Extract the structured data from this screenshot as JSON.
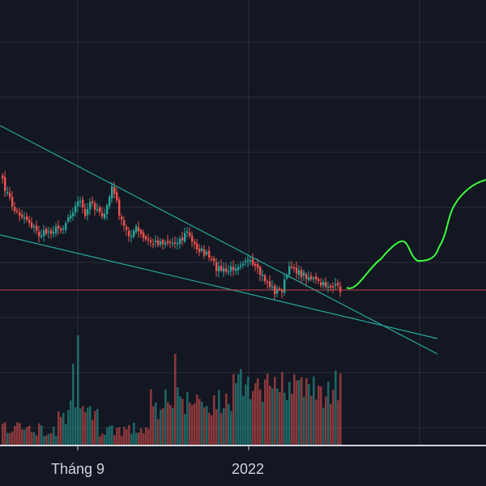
{
  "theme": {
    "background": "#131722",
    "grid": "#2a2e39",
    "up": "#26a69a",
    "down": "#ef5350",
    "volume_up": "#26a69a",
    "volume_down": "#ef5350",
    "trendline": "#26a69a",
    "projection": "#3bff3b",
    "price_line": "#ef5350",
    "axis_line": "#d1d4dc"
  },
  "x_axis": {
    "labels": [
      "Tháng 9",
      "2022"
    ]
  },
  "chart_data": {
    "type": "candlestick",
    "title": "",
    "xlabel": "",
    "ylabel": "",
    "grid": true,
    "legend": "none",
    "ylim": [
      0,
      600
    ],
    "x_labels": [
      "Tháng 9",
      "2022"
    ],
    "bar_count": 140,
    "close_anchors": [
      [
        0,
        225
      ],
      [
        5,
        260
      ],
      [
        10,
        270
      ],
      [
        15,
        290
      ],
      [
        20,
        285
      ],
      [
        25,
        280
      ],
      [
        28,
        262
      ],
      [
        30,
        255
      ],
      [
        32,
        245
      ],
      [
        34,
        270
      ],
      [
        36,
        250
      ],
      [
        40,
        260
      ],
      [
        42,
        268
      ],
      [
        45,
        230
      ],
      [
        47,
        250
      ],
      [
        49,
        275
      ],
      [
        52,
        290
      ],
      [
        55,
        282
      ],
      [
        58,
        295
      ],
      [
        62,
        300
      ],
      [
        66,
        298
      ],
      [
        70,
        300
      ],
      [
        72,
        296
      ],
      [
        74,
        295
      ],
      [
        76,
        285
      ],
      [
        78,
        300
      ],
      [
        80,
        305
      ],
      [
        84,
        315
      ],
      [
        88,
        330
      ],
      [
        92,
        336
      ],
      [
        96,
        328
      ],
      [
        100,
        320
      ],
      [
        104,
        332
      ],
      [
        108,
        345
      ],
      [
        112,
        360
      ],
      [
        115,
        357
      ],
      [
        117,
        340
      ],
      [
        119,
        326
      ],
      [
        122,
        338
      ],
      [
        125,
        340
      ],
      [
        128,
        345
      ],
      [
        131,
        352
      ],
      [
        134,
        352
      ]
    ],
    "resistance_line": {
      "p1": [
        0,
        155
      ],
      "p2": [
        540,
        437
      ]
    },
    "support_line": {
      "p1": [
        0,
        290
      ],
      "p2": [
        540,
        418
      ]
    },
    "horizontal_level": 358,
    "projection_path": [
      [
        428,
        355
      ],
      [
        470,
        320
      ],
      [
        498,
        298
      ],
      [
        520,
        322
      ],
      [
        542,
        305
      ],
      [
        560,
        255
      ],
      [
        600,
        222
      ]
    ]
  }
}
